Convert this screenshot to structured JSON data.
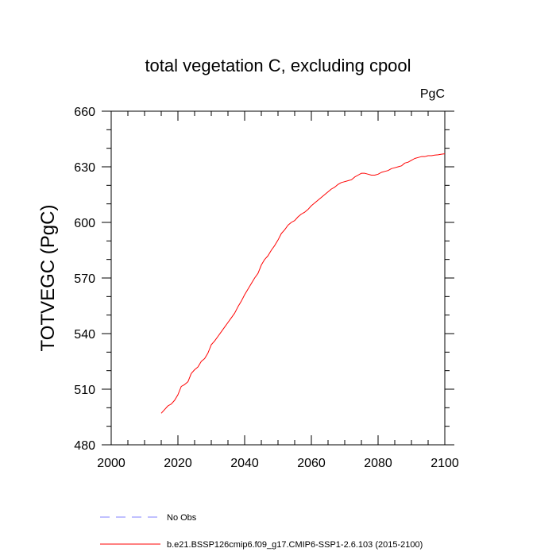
{
  "chart_data": {
    "type": "line",
    "title": "total vegetation C, excluding cpool",
    "units_label": "PgC",
    "ylabel": "TOTVEGC  (PgC)",
    "xlabel": "",
    "xlim": [
      2000,
      2100
    ],
    "ylim": [
      480,
      660
    ],
    "x_ticks": [
      2000,
      2020,
      2040,
      2060,
      2080,
      2100
    ],
    "x_tick_labels": [
      "2000",
      "2020",
      "2040",
      "2060",
      "2080",
      "2100"
    ],
    "y_ticks": [
      480,
      510,
      540,
      570,
      600,
      630,
      660
    ],
    "y_tick_labels": [
      "480",
      "510",
      "540",
      "570",
      "600",
      "630",
      "660"
    ],
    "grid": false,
    "series": [
      {
        "name": "b.e21.BSSP126cmip6.f09_g17.CMIP6-SSP1-2.6.103 (2015-2100)",
        "color": "#ff0000",
        "style": "solid",
        "x": [
          2015,
          2016,
          2017,
          2018,
          2019,
          2020,
          2021,
          2022,
          2023,
          2024,
          2025,
          2026,
          2027,
          2028,
          2029,
          2030,
          2031,
          2032,
          2033,
          2034,
          2035,
          2036,
          2037,
          2038,
          2039,
          2040,
          2041,
          2042,
          2043,
          2044,
          2045,
          2046,
          2047,
          2048,
          2049,
          2050,
          2051,
          2052,
          2053,
          2054,
          2055,
          2056,
          2057,
          2058,
          2059,
          2060,
          2061,
          2062,
          2063,
          2064,
          2065,
          2066,
          2067,
          2068,
          2069,
          2070,
          2071,
          2072,
          2073,
          2074,
          2075,
          2076,
          2077,
          2078,
          2079,
          2080,
          2081,
          2082,
          2083,
          2084,
          2085,
          2086,
          2087,
          2088,
          2089,
          2090,
          2091,
          2092,
          2093,
          2094,
          2095,
          2096,
          2097,
          2098,
          2099,
          2100
        ],
        "values": [
          497,
          499,
          501,
          502,
          504,
          507,
          511.5,
          512.5,
          514,
          518.5,
          520.5,
          522,
          525,
          526.5,
          529.5,
          534,
          536,
          538.5,
          541,
          543.5,
          546,
          548.5,
          551,
          554.5,
          557.5,
          561,
          564,
          567,
          570,
          572.5,
          577,
          580,
          582,
          585,
          587.5,
          590.5,
          594,
          596,
          598.5,
          600,
          601,
          603,
          604.5,
          605.5,
          607,
          609,
          610.5,
          612,
          613.5,
          615,
          616.5,
          618,
          619,
          620.5,
          621.5,
          622,
          622.5,
          623,
          624.5,
          625.5,
          626.5,
          626.5,
          626,
          625.5,
          625.5,
          626,
          627,
          627.5,
          628,
          629,
          629.5,
          630,
          630.5,
          632,
          632.5,
          633.5,
          634.5,
          635,
          635.5,
          635.5,
          636,
          636,
          636.3,
          636.5,
          636.8,
          637
        ]
      }
    ],
    "legend": {
      "position": "bottom-left",
      "entries": [
        {
          "label": "No Obs",
          "color": "#8080ff",
          "style": "dashed"
        },
        {
          "label": "b.e21.BSSP126cmip6.f09_g17.CMIP6-SSP1-2.6.103 (2015-2100)",
          "color": "#ff0000",
          "style": "solid"
        }
      ]
    }
  }
}
